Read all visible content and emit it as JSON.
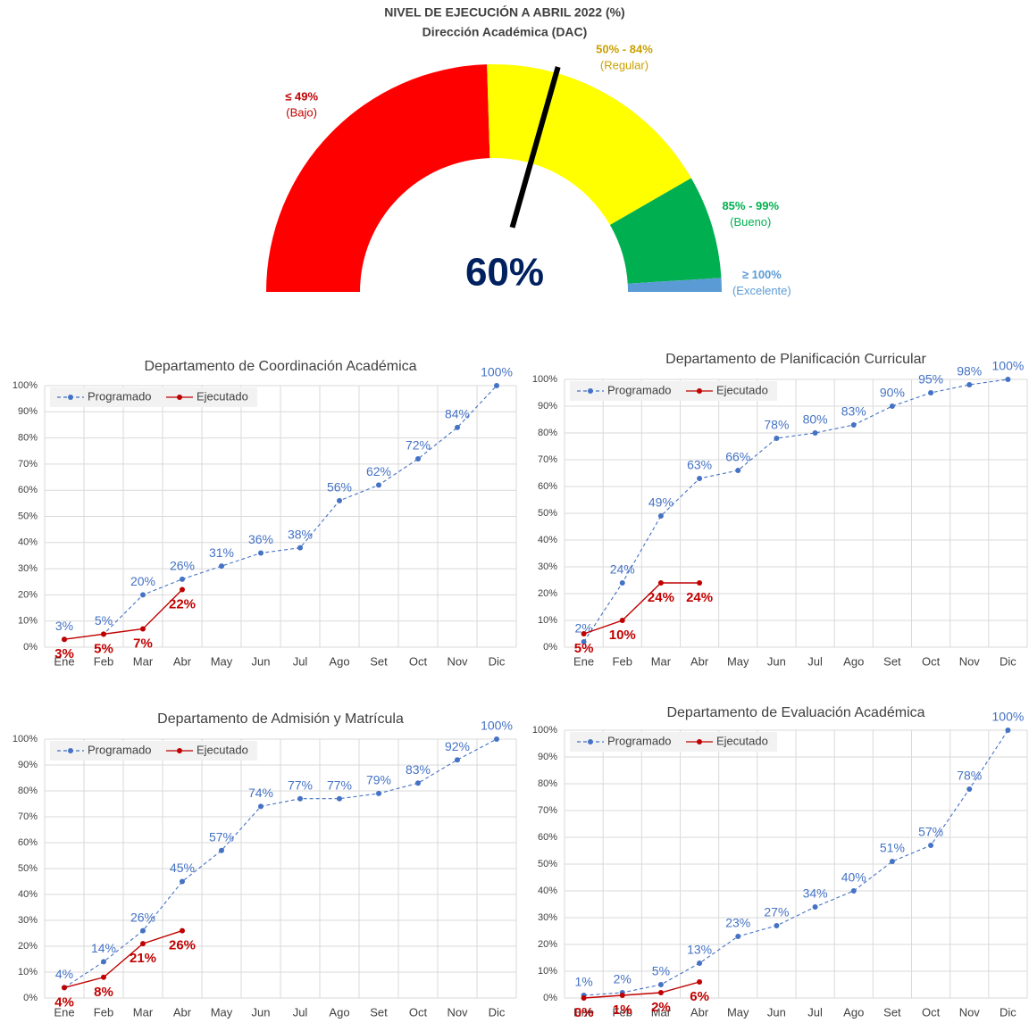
{
  "chart_data": [
    {
      "type": "gauge",
      "title": "NIVEL DE EJECUCIÓN A ABRIL 2022 (%)",
      "subtitle": "Dirección Académica (DAC)",
      "value": 60,
      "value_label": "60%",
      "range": [
        0,
        102
      ],
      "needle_color": "#000000",
      "value_color": "#002060",
      "bands": [
        {
          "label": "≤ 49%",
          "sublabel": "(Bajo)",
          "from": 0,
          "to": 50,
          "color": "#ff0000",
          "text_color": "#c00000"
        },
        {
          "label": "50% - 84%",
          "sublabel": "(Regular)",
          "from": 50,
          "to": 85,
          "color": "#ffff00",
          "text_color": "#c9a000"
        },
        {
          "label": "85% - 99%",
          "sublabel": "(Bueno)",
          "from": 85,
          "to": 100,
          "color": "#00b050",
          "text_color": "#00b050"
        },
        {
          "label": "≥ 100%",
          "sublabel": "(Excelente)",
          "from": 100,
          "to": 102,
          "color": "#5b9bd5",
          "text_color": "#5b9bd5"
        }
      ]
    },
    {
      "type": "line",
      "title": "Departamento de Coordinación Académica",
      "categories": [
        "Ene",
        "Feb",
        "Mar",
        "Abr",
        "May",
        "Jun",
        "Jul",
        "Ago",
        "Set",
        "Oct",
        "Nov",
        "Dic"
      ],
      "ylim": [
        0,
        100
      ],
      "yticks": [
        {
          "value": 0,
          "label": "0%"
        },
        {
          "value": 10,
          "label": "10%"
        },
        {
          "value": 20,
          "label": "20%"
        },
        {
          "value": 30,
          "label": "30%"
        },
        {
          "value": 40,
          "label": "40%"
        },
        {
          "value": 50,
          "label": "50%"
        },
        {
          "value": 60,
          "label": "60%"
        },
        {
          "value": 70,
          "label": "70%"
        },
        {
          "value": 80,
          "label": "80%"
        },
        {
          "value": 90,
          "label": "90%"
        },
        {
          "value": 100,
          "label": "100%"
        }
      ],
      "grid": true,
      "legend": "top-left",
      "series": [
        {
          "name": "Programado",
          "color": "#4472c4",
          "dashed": true,
          "values": [
            3,
            5,
            20,
            26,
            31,
            36,
            38,
            56,
            62,
            72,
            84,
            100
          ],
          "value_labels": [
            "3%",
            "5%",
            "20%",
            "26%",
            "31%",
            "36%",
            "38%",
            "56%",
            "62%",
            "72%",
            "84%",
            "100%"
          ]
        },
        {
          "name": "Ejecutado",
          "color": "#c00000",
          "dashed": false,
          "values": [
            3,
            5,
            7,
            22,
            null,
            null,
            null,
            null,
            null,
            null,
            null,
            null
          ],
          "value_labels": [
            "3%",
            "5%",
            "7%",
            "22%",
            null,
            null,
            null,
            null,
            null,
            null,
            null,
            null
          ]
        }
      ]
    },
    {
      "type": "line",
      "title": "Departamento de Planificación Curricular",
      "categories": [
        "Ene",
        "Feb",
        "Mar",
        "Abr",
        "May",
        "Jun",
        "Jul",
        "Ago",
        "Set",
        "Oct",
        "Nov",
        "Dic"
      ],
      "ylim": [
        0,
        100
      ],
      "yticks": [
        {
          "value": 0,
          "label": "0%"
        },
        {
          "value": 10,
          "label": "10%"
        },
        {
          "value": 20,
          "label": "20%"
        },
        {
          "value": 30,
          "label": "30%"
        },
        {
          "value": 40,
          "label": "40%"
        },
        {
          "value": 50,
          "label": "50%"
        },
        {
          "value": 60,
          "label": "60%"
        },
        {
          "value": 70,
          "label": "70%"
        },
        {
          "value": 80,
          "label": "80%"
        },
        {
          "value": 90,
          "label": "90%"
        },
        {
          "value": 100,
          "label": "100%"
        }
      ],
      "grid": true,
      "legend": "top-left",
      "series": [
        {
          "name": "Programado",
          "color": "#4472c4",
          "dashed": true,
          "values": [
            2,
            24,
            49,
            63,
            66,
            78,
            80,
            83,
            90,
            95,
            98,
            100
          ],
          "value_labels": [
            "2%",
            "24%",
            "49%",
            "63%",
            "66%",
            "78%",
            "80%",
            "83%",
            "90%",
            "95%",
            "98%",
            "100%"
          ]
        },
        {
          "name": "Ejecutado",
          "color": "#c00000",
          "dashed": false,
          "values": [
            5,
            10,
            24,
            24,
            null,
            null,
            null,
            null,
            null,
            null,
            null,
            null
          ],
          "value_labels": [
            "5%",
            "10%",
            "24%",
            "24%",
            null,
            null,
            null,
            null,
            null,
            null,
            null,
            null
          ]
        }
      ]
    },
    {
      "type": "line",
      "title": "Departamento de Admisión y Matrícula",
      "categories": [
        "Ene",
        "Feb",
        "Mar",
        "Abr",
        "May",
        "Jun",
        "Jul",
        "Ago",
        "Set",
        "Oct",
        "Nov",
        "Dic"
      ],
      "ylim": [
        0,
        100
      ],
      "yticks": [
        {
          "value": 0,
          "label": "0%"
        },
        {
          "value": 10,
          "label": "10%"
        },
        {
          "value": 20,
          "label": "20%"
        },
        {
          "value": 30,
          "label": "30%"
        },
        {
          "value": 40,
          "label": "40%"
        },
        {
          "value": 50,
          "label": "50%"
        },
        {
          "value": 60,
          "label": "60%"
        },
        {
          "value": 70,
          "label": "70%"
        },
        {
          "value": 80,
          "label": "80%"
        },
        {
          "value": 90,
          "label": "90%"
        },
        {
          "value": 100,
          "label": "100%"
        }
      ],
      "grid": true,
      "legend": "top-left",
      "series": [
        {
          "name": "Programado",
          "color": "#4472c4",
          "dashed": true,
          "values": [
            4,
            14,
            26,
            45,
            57,
            74,
            77,
            77,
            79,
            83,
            92,
            100
          ],
          "value_labels": [
            "4%",
            "14%",
            "26%",
            "45%",
            "57%",
            "74%",
            "77%",
            "77%",
            "79%",
            "83%",
            "92%",
            "100%"
          ]
        },
        {
          "name": "Ejecutado",
          "color": "#c00000",
          "dashed": false,
          "values": [
            4,
            8,
            21,
            26,
            null,
            null,
            null,
            null,
            null,
            null,
            null,
            null
          ],
          "value_labels": [
            "4%",
            "8%",
            "21%",
            "26%",
            null,
            null,
            null,
            null,
            null,
            null,
            null,
            null
          ]
        }
      ]
    },
    {
      "type": "line",
      "title": "Departamento de Evaluación Académica",
      "categories": [
        "Ene",
        "Feb",
        "Mar",
        "Abr",
        "May",
        "Jun",
        "Jul",
        "Ago",
        "Set",
        "Oct",
        "Nov",
        "Dic"
      ],
      "ylim": [
        0,
        100
      ],
      "yticks": [
        {
          "value": 0,
          "label": "0%"
        },
        {
          "value": 10,
          "label": "10%"
        },
        {
          "value": 20,
          "label": "20%"
        },
        {
          "value": 30,
          "label": "30%"
        },
        {
          "value": 40,
          "label": "40%"
        },
        {
          "value": 50,
          "label": "50%"
        },
        {
          "value": 60,
          "label": "60%"
        },
        {
          "value": 70,
          "label": "70%"
        },
        {
          "value": 80,
          "label": "80%"
        },
        {
          "value": 90,
          "label": "90%"
        },
        {
          "value": 100,
          "label": "100%"
        }
      ],
      "grid": true,
      "legend": "top-left",
      "series": [
        {
          "name": "Programado",
          "color": "#4472c4",
          "dashed": true,
          "values": [
            1,
            2,
            5,
            13,
            23,
            27,
            34,
            40,
            51,
            57,
            78,
            100
          ],
          "value_labels": [
            "1%",
            "2%",
            "5%",
            "13%",
            "23%",
            "27%",
            "34%",
            "40%",
            "51%",
            "57%",
            "78%",
            "100%"
          ]
        },
        {
          "name": "Ejecutado",
          "color": "#c00000",
          "dashed": false,
          "values": [
            0,
            1,
            2,
            6,
            null,
            null,
            null,
            null,
            null,
            null,
            null,
            null
          ],
          "value_labels": [
            "0%",
            "1%",
            "2%",
            "6%",
            null,
            null,
            null,
            null,
            null,
            null,
            null,
            null
          ]
        }
      ]
    }
  ]
}
